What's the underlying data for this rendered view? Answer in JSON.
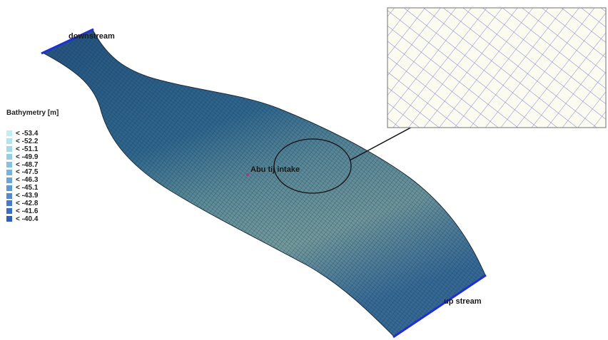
{
  "labels": {
    "downstream": "downstream",
    "intake": "Abu tij intake",
    "upstream": "up stream"
  },
  "legend": {
    "title": "Bathymetry [m]",
    "items": [
      {
        "label": "< -53.4",
        "color": "#bfeef4"
      },
      {
        "label": "< -52.2",
        "color": "#b0e4f0"
      },
      {
        "label": "< -51.1",
        "color": "#a2d9ec"
      },
      {
        "label": "< -49.9",
        "color": "#94cde8"
      },
      {
        "label": "< -48.7",
        "color": "#86c0e4"
      },
      {
        "label": "< -47.5",
        "color": "#78b3e0"
      },
      {
        "label": "< -46.3",
        "color": "#6aa5dc"
      },
      {
        "label": "< -45.1",
        "color": "#5d98d7"
      },
      {
        "label": "< -43.9",
        "color": "#508ad2"
      },
      {
        "label": "< -42.8",
        "color": "#447ccc"
      },
      {
        "label": "< -41.6",
        "color": "#396ec5"
      },
      {
        "label": "< -40.4",
        "color": "#2f60bd"
      }
    ]
  },
  "colors": {
    "mesh_deep": "#2a5a8c",
    "mesh_shallow": "#9cbfa6",
    "mesh_line": "#1d2f3e",
    "boundary": "#1f2fd6",
    "inset_line": "#7b7fd6",
    "inset_bg": "#fbfbf0"
  }
}
